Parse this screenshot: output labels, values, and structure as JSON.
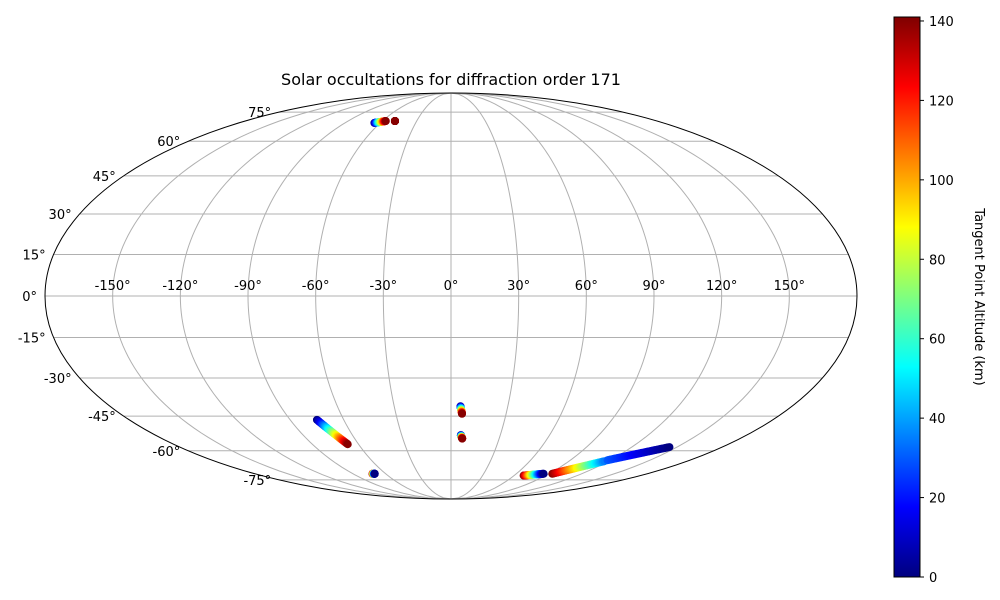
{
  "chart_data": {
    "type": "scatter",
    "projection": "mollweide",
    "title": "Solar occultations for diffraction order 171",
    "grid": true,
    "lon_ticks": [
      -150,
      -120,
      -90,
      -60,
      -30,
      0,
      30,
      60,
      90,
      120,
      150
    ],
    "lon_tick_labels": [
      "-150°",
      "-120°",
      "-90°",
      "-60°",
      "-30°",
      "0°",
      "30°",
      "60°",
      "90°",
      "120°",
      "150°"
    ],
    "lat_ticks": [
      -75,
      -60,
      -45,
      -30,
      -15,
      0,
      15,
      30,
      45,
      60,
      75
    ],
    "lat_tick_labels": [
      "-75°",
      "-60°",
      "-45°",
      "-30°",
      "-15°",
      "0°",
      "15°",
      "30°",
      "45°",
      "60°",
      "75°"
    ],
    "colorbar": {
      "label": "Tangent Point Altitude (km)",
      "colormap": "jet",
      "range": [
        0,
        141
      ],
      "ticks": [
        0,
        20,
        40,
        60,
        80,
        100,
        120,
        140
      ],
      "tick_labels": [
        "0",
        "20",
        "40",
        "60",
        "80",
        "100",
        "120",
        "140"
      ]
    },
    "series": [
      {
        "lon_range": [
          -65,
          -57
        ],
        "lat_range": [
          69,
          70
        ],
        "alt_range": [
          0,
          140
        ]
      },
      {
        "lon_range": [
          -49,
          -49
        ],
        "lat_range": [
          70,
          70
        ],
        "alt_range": [
          140,
          140
        ]
      },
      {
        "lon_range": [
          -75,
          -67
        ],
        "lat_range": [
          -46.5,
          -57
        ],
        "alt_range": [
          0,
          140
        ]
      },
      {
        "lon_range": [
          -72,
          -70
        ],
        "lat_range": [
          -71.5,
          -71.5
        ],
        "alt_range": [
          140,
          0
        ]
      },
      {
        "lon_range": [
          5,
          6
        ],
        "lat_range": [
          -41,
          -44
        ],
        "alt_range": [
          0,
          140
        ]
      },
      {
        "lon_range": [
          6,
          7
        ],
        "lat_range": [
          -53,
          -54.5
        ],
        "alt_range": [
          0,
          140
        ]
      },
      {
        "lon_range": [
          69,
          85
        ],
        "lat_range": [
          -72.5,
          -71.5
        ],
        "alt_range": [
          140,
          0
        ]
      },
      {
        "lon_range": [
          93,
          117
        ],
        "lat_range": [
          -71.5,
          -65
        ],
        "alt_range": [
          140,
          35
        ]
      },
      {
        "lon_range": [
          118,
          145
        ],
        "lat_range": [
          -64.5,
          -58.3
        ],
        "alt_range": [
          30,
          0
        ]
      }
    ]
  }
}
